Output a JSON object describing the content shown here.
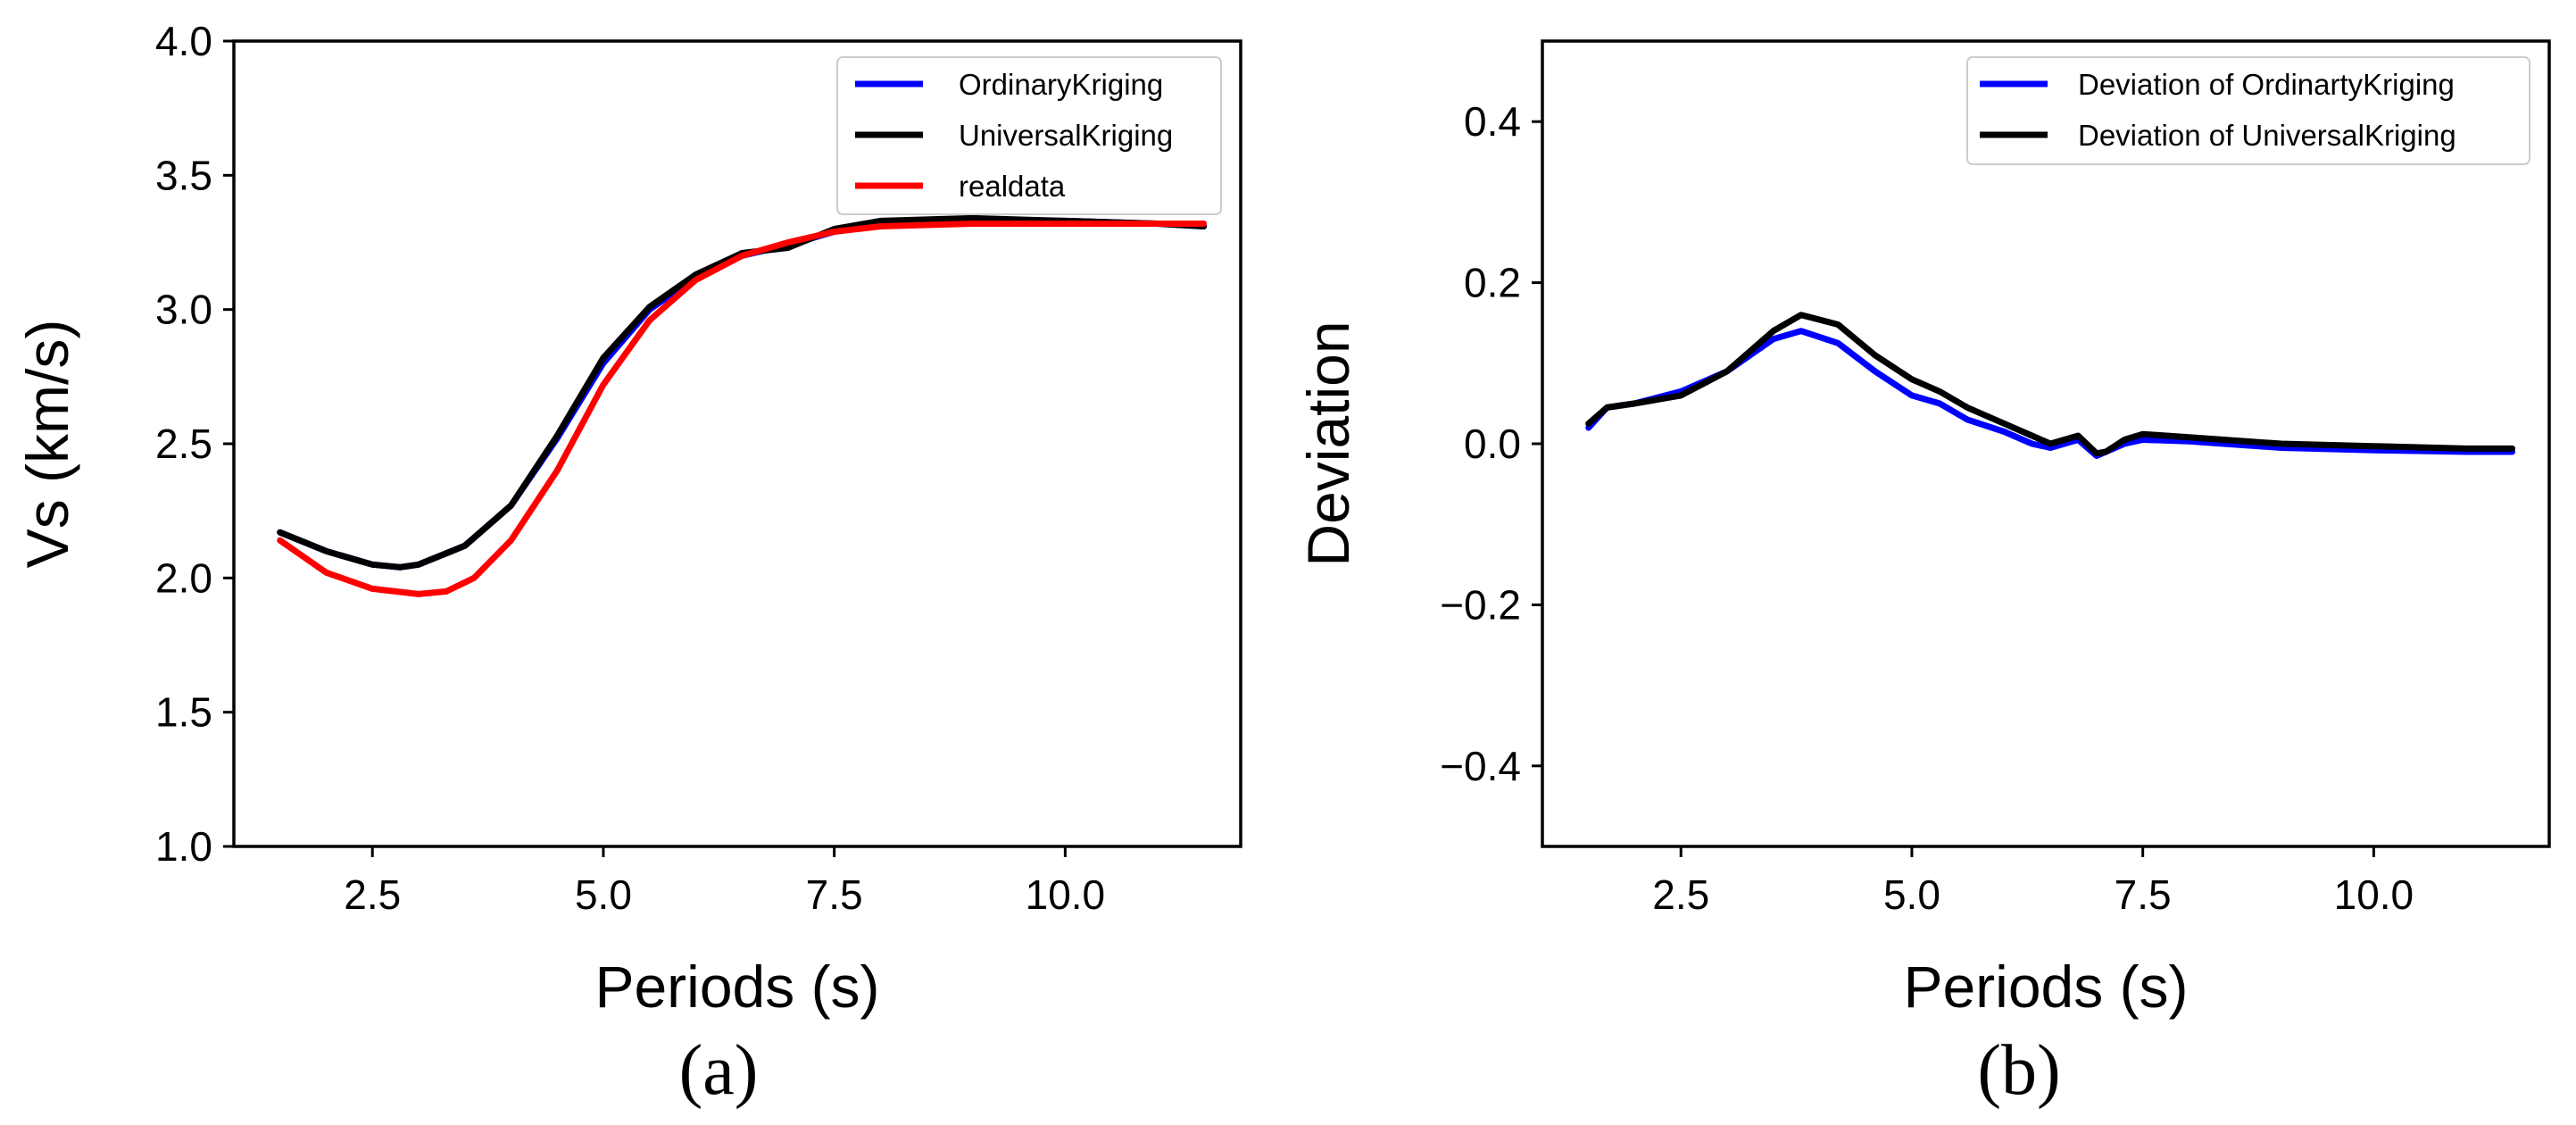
{
  "chart_data": [
    {
      "type": "line",
      "panel_label": "(a)",
      "xlabel": "Periods (s)",
      "ylabel": "Vs (km/s)",
      "xlim": [
        1.0,
        11.9
      ],
      "ylim": [
        1.0,
        4.0
      ],
      "xticks": [
        2.5,
        5.0,
        7.5,
        10.0
      ],
      "xtick_labels": [
        "2.5",
        "5.0",
        "7.5",
        "10.0"
      ],
      "yticks": [
        1.0,
        1.5,
        2.0,
        2.5,
        3.0,
        3.5,
        4.0
      ],
      "ytick_labels": [
        "1.0",
        "1.5",
        "2.0",
        "2.5",
        "3.0",
        "3.5",
        "4.0"
      ],
      "legend_position": "top-right",
      "series": [
        {
          "name": "OrdinaryKriging",
          "color": "#0000ff",
          "x": [
            1.5,
            2.0,
            2.5,
            2.8,
            3.0,
            3.5,
            4.0,
            4.5,
            5.0,
            5.5,
            6.0,
            6.5,
            7.0,
            7.5,
            8.0,
            9.0,
            10.0,
            11.0,
            11.5
          ],
          "y": [
            2.17,
            2.1,
            2.05,
            2.04,
            2.05,
            2.12,
            2.27,
            2.52,
            2.8,
            3.0,
            3.12,
            3.2,
            3.24,
            3.29,
            3.32,
            3.33,
            3.33,
            3.32,
            3.31
          ]
        },
        {
          "name": "UniversalKriging",
          "color": "#000000",
          "x": [
            1.5,
            2.0,
            2.5,
            2.8,
            3.0,
            3.5,
            4.0,
            4.5,
            5.0,
            5.5,
            6.0,
            6.5,
            7.0,
            7.5,
            8.0,
            9.0,
            10.0,
            11.0,
            11.5
          ],
          "y": [
            2.17,
            2.1,
            2.05,
            2.04,
            2.05,
            2.12,
            2.27,
            2.53,
            2.82,
            3.01,
            3.13,
            3.21,
            3.23,
            3.3,
            3.33,
            3.34,
            3.33,
            3.32,
            3.31
          ]
        },
        {
          "name": "realdata",
          "color": "#ff0000",
          "x": [
            1.5,
            2.0,
            2.5,
            3.0,
            3.3,
            3.6,
            4.0,
            4.5,
            5.0,
            5.5,
            6.0,
            6.5,
            7.0,
            7.5,
            8.0,
            9.0,
            10.0,
            11.0,
            11.5
          ],
          "y": [
            2.14,
            2.02,
            1.96,
            1.94,
            1.95,
            2.0,
            2.14,
            2.4,
            2.72,
            2.96,
            3.11,
            3.2,
            3.25,
            3.29,
            3.31,
            3.32,
            3.32,
            3.32,
            3.32
          ]
        }
      ]
    },
    {
      "type": "line",
      "panel_label": "(b)",
      "xlabel": "Periods (s)",
      "ylabel": "Deviation",
      "xlim": [
        1.0,
        11.9
      ],
      "ylim": [
        -0.5,
        0.5
      ],
      "xticks": [
        2.5,
        5.0,
        7.5,
        10.0
      ],
      "xtick_labels": [
        "2.5",
        "5.0",
        "7.5",
        "10.0"
      ],
      "yticks": [
        -0.4,
        -0.2,
        0.0,
        0.2,
        0.4
      ],
      "ytick_labels": [
        "−0.4",
        "−0.2",
        "0.0",
        "0.2",
        "0.4"
      ],
      "legend_position": "top-right",
      "series": [
        {
          "name": "Deviation of OrdinartyKriging",
          "color": "#0000ff",
          "x": [
            1.5,
            1.7,
            2.0,
            2.5,
            3.0,
            3.5,
            3.8,
            4.2,
            4.6,
            5.0,
            5.3,
            5.6,
            6.0,
            6.3,
            6.5,
            6.8,
            7.0,
            7.1,
            7.3,
            7.5,
            8.0,
            9.0,
            10.0,
            11.0,
            11.5
          ],
          "y": [
            0.02,
            0.045,
            0.05,
            0.065,
            0.09,
            0.13,
            0.14,
            0.125,
            0.09,
            0.06,
            0.05,
            0.03,
            0.015,
            0.0,
            -0.005,
            0.005,
            -0.015,
            -0.01,
            0.0,
            0.005,
            0.003,
            -0.005,
            -0.008,
            -0.01,
            -0.01
          ]
        },
        {
          "name": "Deviation of UniversalKriging",
          "color": "#000000",
          "x": [
            1.5,
            1.7,
            2.0,
            2.5,
            3.0,
            3.5,
            3.8,
            4.2,
            4.6,
            5.0,
            5.3,
            5.6,
            6.0,
            6.3,
            6.5,
            6.8,
            7.0,
            7.1,
            7.3,
            7.5,
            8.0,
            9.0,
            10.0,
            11.0,
            11.5
          ],
          "y": [
            0.025,
            0.045,
            0.05,
            0.06,
            0.09,
            0.14,
            0.16,
            0.148,
            0.11,
            0.08,
            0.065,
            0.045,
            0.025,
            0.01,
            0.0,
            0.01,
            -0.012,
            -0.01,
            0.005,
            0.012,
            0.008,
            0.0,
            -0.003,
            -0.006,
            -0.006
          ]
        }
      ]
    }
  ]
}
